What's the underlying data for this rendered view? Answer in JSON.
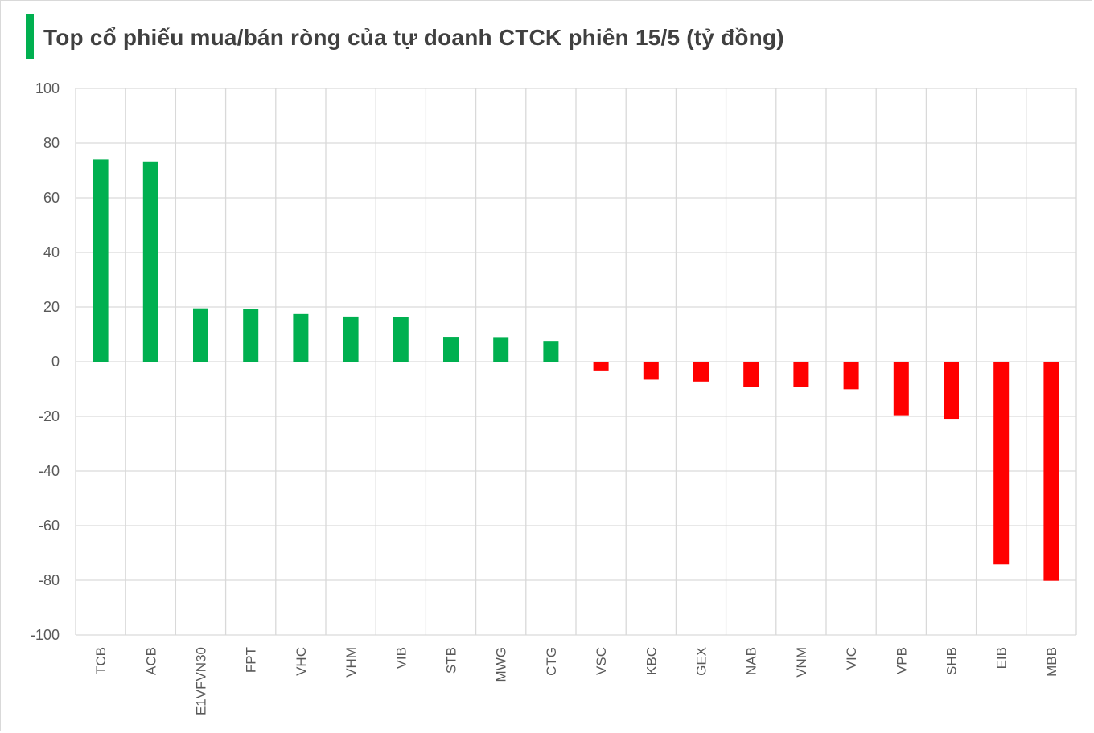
{
  "chart_data": {
    "type": "bar",
    "title": "Top cổ phiếu mua/bán ròng của tự doanh CTCK phiên 15/5 (tỷ đồng)",
    "xlabel": "",
    "ylabel": "",
    "ylim": [
      -100,
      100
    ],
    "yticks": [
      100,
      80,
      60,
      40,
      20,
      0,
      -20,
      -40,
      -60,
      -80,
      -100
    ],
    "grid": true,
    "legend": "none",
    "categories": [
      "TCB",
      "ACB",
      "E1VFVN30",
      "FPT",
      "VHC",
      "VHM",
      "VIB",
      "STB",
      "MWG",
      "CTG",
      "VSC",
      "KBC",
      "GEX",
      "NAB",
      "VNM",
      "VIC",
      "VPB",
      "SHB",
      "EIB",
      "MBB"
    ],
    "values": [
      74,
      73.3,
      19.5,
      19.2,
      17.4,
      16.5,
      16.2,
      9.1,
      9.0,
      7.6,
      -3.2,
      -6.6,
      -7.3,
      -9.2,
      -9.3,
      -10.1,
      -19.6,
      -20.9,
      -74.2,
      -80.2
    ],
    "colors": {
      "positive": "#00b050",
      "negative": "#ff0000",
      "grid": "#d9d9d9",
      "accent": "#00b050"
    }
  }
}
